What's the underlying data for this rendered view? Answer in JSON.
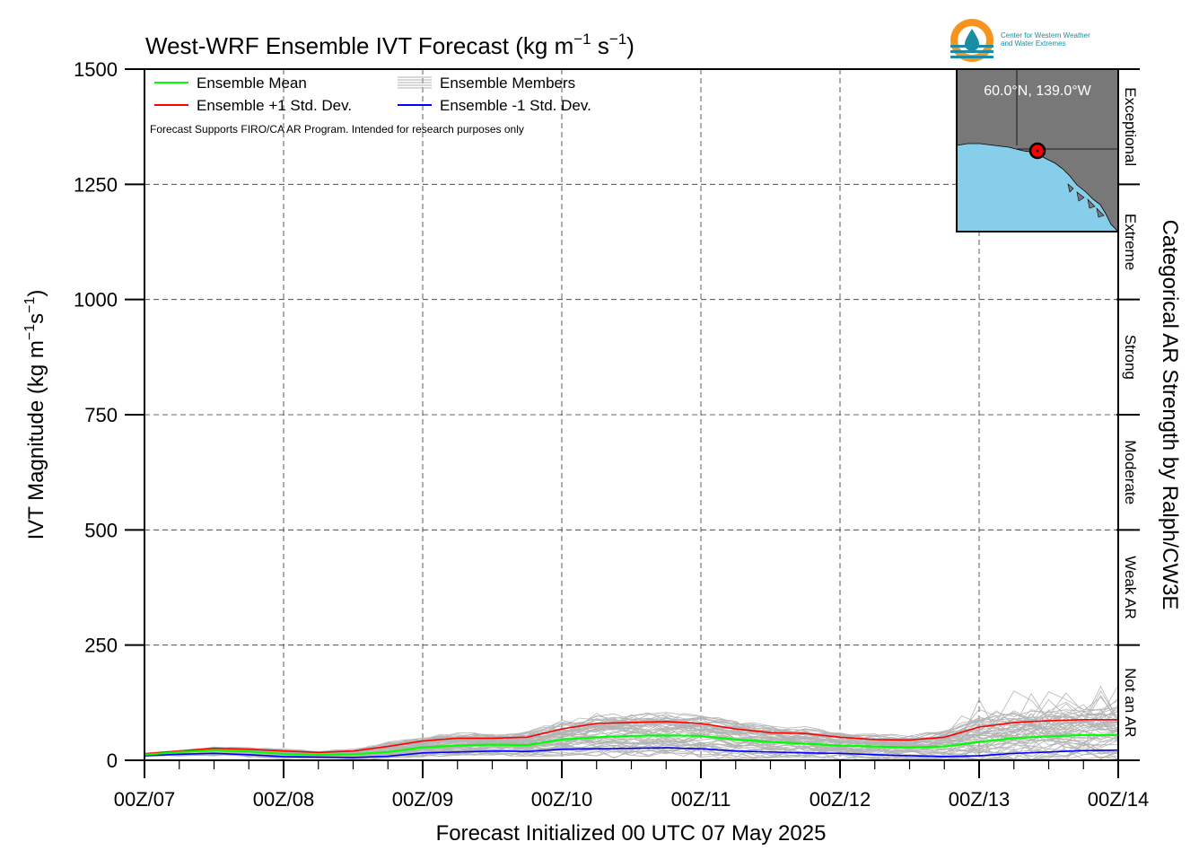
{
  "chart_data": {
    "type": "line",
    "title": "West-WRF Ensemble IVT Forecast (kg m",
    "title_unit_exp1": "−1",
    "title_unit_mid": " s",
    "title_unit_exp2": "−1",
    "title_unit_end": ")",
    "ylabel": "IVT Magnitude (kg m",
    "ylabel_exp1": "−1",
    "ylabel_mid": "s",
    "ylabel_exp2": "−1",
    "ylabel_end": ")",
    "xlabel": "Forecast Initialized 00 UTC 07 May 2025",
    "right_label": "Categorical AR Strength by Ralph/CW3E",
    "ylim": [
      0,
      1500
    ],
    "xlim": [
      0,
      168
    ],
    "x_units": "forecast hour",
    "y_ticks": [
      "0",
      "250",
      "500",
      "750",
      "1000",
      "1250",
      "1500"
    ],
    "x_ticks": [
      {
        "hour": 0,
        "label": "00Z/07"
      },
      {
        "hour": 24,
        "label": "00Z/08"
      },
      {
        "hour": 48,
        "label": "00Z/09"
      },
      {
        "hour": 72,
        "label": "00Z/10"
      },
      {
        "hour": 96,
        "label": "00Z/11"
      },
      {
        "hour": 120,
        "label": "00Z/12"
      },
      {
        "hour": 144,
        "label": "00Z/13"
      },
      {
        "hour": 168,
        "label": "00Z/14"
      }
    ],
    "grid": true,
    "categories_right": [
      {
        "label": "Not an AR",
        "range": [
          0,
          250
        ]
      },
      {
        "label": "Weak AR",
        "range": [
          250,
          500
        ]
      },
      {
        "label": "Moderate",
        "range": [
          500,
          750
        ]
      },
      {
        "label": "Strong",
        "range": [
          750,
          1000
        ]
      },
      {
        "label": "Extreme",
        "range": [
          1000,
          1250
        ]
      },
      {
        "label": "Exceptional",
        "range": [
          1250,
          1500
        ]
      }
    ],
    "legend": [
      {
        "name": "Ensemble Mean",
        "color": "#00ff00",
        "style": "single"
      },
      {
        "name": "Ensemble Members",
        "color": "#b0b0b0",
        "style": "multi"
      },
      {
        "name": "Ensemble +1 Std. Dev.",
        "color": "#ff0000",
        "style": "single"
      },
      {
        "name": "Ensemble -1 Std. Dev.",
        "color": "#0000ff",
        "style": "single"
      }
    ],
    "disclaimer": "Forecast Supports FIRO/CA AR Program. Intended for research purposes only",
    "inset_location": "60.0°N, 139.0°W",
    "series": [
      {
        "name": "Ensemble Mean",
        "color": "#00ff00",
        "x": [
          0,
          6,
          12,
          18,
          24,
          30,
          36,
          42,
          48,
          54,
          60,
          66,
          72,
          78,
          84,
          90,
          96,
          102,
          108,
          114,
          120,
          126,
          132,
          138,
          144,
          150,
          156,
          162,
          168
        ],
        "y": [
          12,
          18,
          22,
          19,
          14,
          12,
          13,
          18,
          28,
          32,
          34,
          33,
          45,
          50,
          53,
          54,
          53,
          45,
          40,
          36,
          32,
          30,
          28,
          30,
          40,
          48,
          52,
          55,
          55
        ]
      },
      {
        "name": "Ensemble +1 Std. Dev.",
        "color": "#ff0000",
        "x": [
          0,
          6,
          12,
          18,
          24,
          30,
          36,
          42,
          48,
          54,
          60,
          66,
          72,
          78,
          84,
          90,
          96,
          102,
          108,
          114,
          120,
          126,
          132,
          138,
          144,
          150,
          156,
          162,
          168
        ],
        "y": [
          14,
          20,
          26,
          24,
          20,
          17,
          20,
          30,
          42,
          48,
          48,
          50,
          68,
          80,
          82,
          84,
          80,
          68,
          60,
          58,
          50,
          45,
          44,
          50,
          72,
          82,
          86,
          88,
          88
        ]
      },
      {
        "name": "Ensemble -1 Std. Dev.",
        "color": "#0000ff",
        "x": [
          0,
          6,
          12,
          18,
          24,
          30,
          36,
          42,
          48,
          54,
          60,
          66,
          72,
          78,
          84,
          90,
          96,
          102,
          108,
          114,
          120,
          126,
          132,
          138,
          144,
          150,
          156,
          162,
          168
        ],
        "y": [
          10,
          13,
          15,
          12,
          8,
          7,
          6,
          9,
          16,
          18,
          20,
          19,
          24,
          25,
          26,
          27,
          25,
          20,
          18,
          16,
          15,
          12,
          10,
          8,
          10,
          15,
          18,
          21,
          22
        ]
      }
    ]
  },
  "logo": {
    "line1": "Center for Western Weather",
    "line2": "and Water Extremes",
    "color_orange": "#f7941d",
    "color_teal": "#1a8ca3"
  },
  "colors": {
    "member": "#b4b4b4",
    "ocean": "#87ceeb",
    "land": "#787878"
  }
}
